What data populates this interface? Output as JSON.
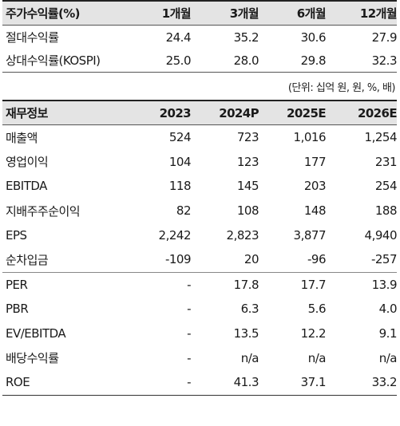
{
  "returns": {
    "header": [
      "주가수익률(%)",
      "1개월",
      "3개월",
      "6개월",
      "12개월"
    ],
    "rows": [
      [
        "절대수익률",
        "24.4",
        "35.2",
        "30.6",
        "27.9"
      ],
      [
        "상대수익률(KOSPI)",
        "25.0",
        "28.0",
        "29.8",
        "32.3"
      ]
    ]
  },
  "unit_note": "(단위: 십억 원, 원, %, 배)",
  "financials": {
    "header": [
      "재무정보",
      "2023",
      "2024P",
      "2025E",
      "2026E"
    ],
    "rows": [
      [
        "매출액",
        "524",
        "723",
        "1,016",
        "1,254"
      ],
      [
        "영업이익",
        "104",
        "123",
        "177",
        "231"
      ],
      [
        "EBITDA",
        "118",
        "145",
        "203",
        "254"
      ],
      [
        "지배주주순이익",
        "82",
        "108",
        "148",
        "188"
      ],
      [
        "EPS",
        "2,242",
        "2,823",
        "3,877",
        "4,940"
      ],
      [
        "순차입금",
        "-109",
        "20",
        "-96",
        "-257"
      ],
      [
        "PER",
        "-",
        "17.8",
        "17.7",
        "13.9"
      ],
      [
        "PBR",
        "-",
        "6.3",
        "5.6",
        "4.0"
      ],
      [
        "EV/EBITDA",
        "-",
        "13.5",
        "12.2",
        "9.1"
      ],
      [
        "배당수익률",
        "-",
        "n/a",
        "n/a",
        "n/a"
      ],
      [
        "ROE",
        "-",
        "41.3",
        "37.1",
        "33.2"
      ]
    ]
  }
}
